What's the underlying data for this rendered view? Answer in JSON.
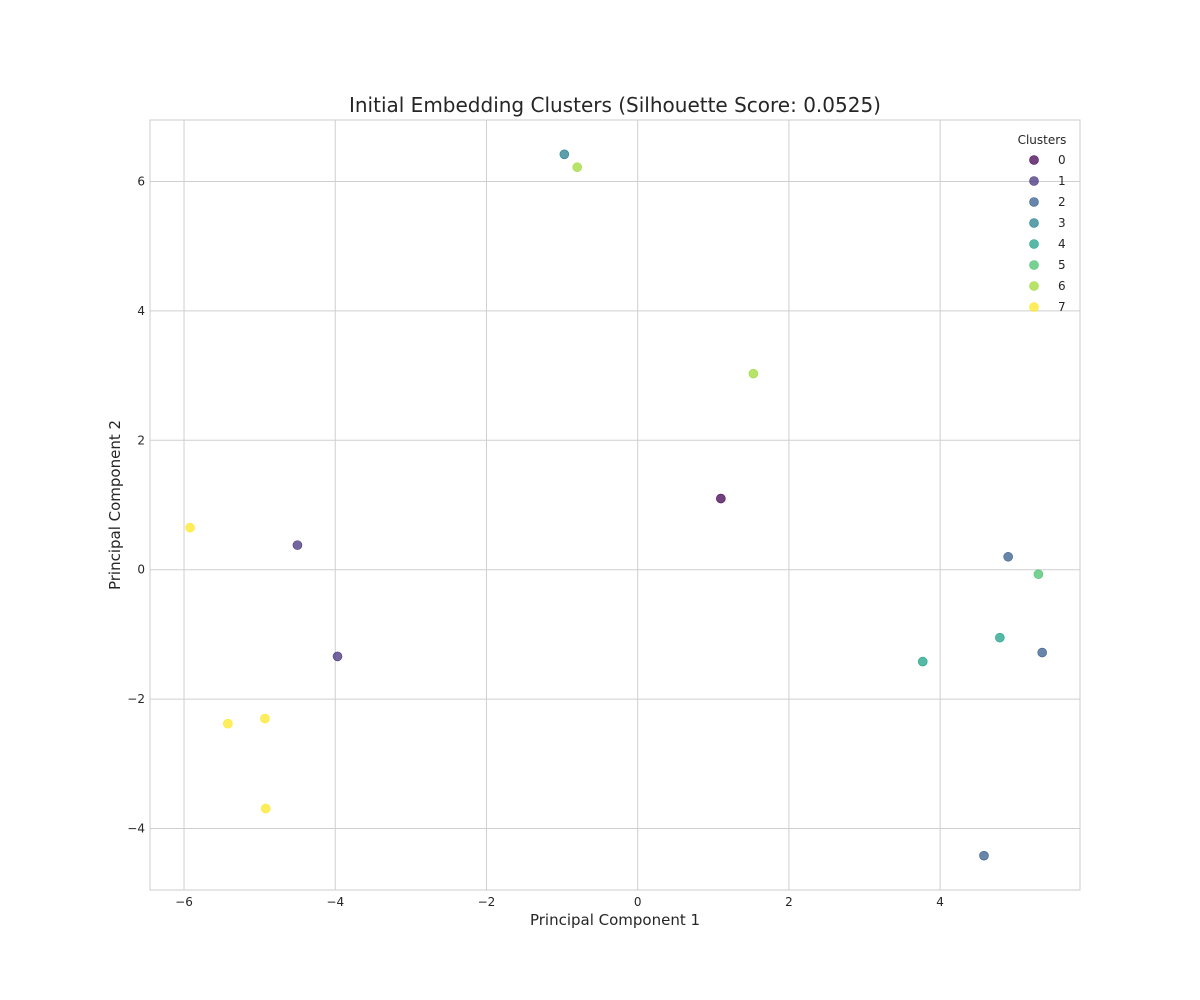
{
  "chart_data": {
    "type": "scatter",
    "title": "Initial Embedding Clusters (Silhouette Score: 0.0525)",
    "xlabel": "Principal Component 1",
    "ylabel": "Principal Component 2",
    "xlim": [
      -6.45,
      5.85
    ],
    "ylim": [
      -4.95,
      6.95
    ],
    "xticks": [
      -6,
      -4,
      -2,
      0,
      2,
      4
    ],
    "xtick_labels": [
      "−6",
      "−4",
      "−2",
      "0",
      "2",
      "4"
    ],
    "yticks": [
      -4,
      -2,
      0,
      2,
      4,
      6
    ],
    "ytick_labels": [
      "−4",
      "−2",
      "0",
      "2",
      "4",
      "6"
    ],
    "grid": true,
    "legend": {
      "title": "Clusters",
      "placement": "top-right"
    },
    "series": [
      {
        "name": "0",
        "color": "#440154",
        "points": [
          [
            1.1,
            1.1
          ]
        ]
      },
      {
        "name": "1",
        "color": "#46327e",
        "points": [
          [
            -4.5,
            0.38
          ],
          [
            -3.97,
            -1.34
          ]
        ]
      },
      {
        "name": "2",
        "color": "#365c8d",
        "points": [
          [
            4.9,
            0.2
          ],
          [
            5.35,
            -1.28
          ],
          [
            4.58,
            -4.42
          ]
        ]
      },
      {
        "name": "3",
        "color": "#277f8e",
        "points": [
          [
            -0.97,
            6.42
          ]
        ]
      },
      {
        "name": "4",
        "color": "#1fa187",
        "points": [
          [
            4.79,
            -1.05
          ],
          [
            3.77,
            -1.42
          ]
        ]
      },
      {
        "name": "5",
        "color": "#4ac16d",
        "points": [
          [
            5.3,
            -0.07
          ]
        ]
      },
      {
        "name": "6",
        "color": "#a0da39",
        "points": [
          [
            -0.8,
            6.22
          ],
          [
            1.53,
            3.03
          ]
        ]
      },
      {
        "name": "7",
        "color": "#fde725",
        "points": [
          [
            -5.92,
            0.65
          ],
          [
            -4.93,
            -2.3
          ],
          [
            -5.42,
            -2.38
          ],
          [
            -4.92,
            -3.69
          ]
        ]
      }
    ]
  }
}
